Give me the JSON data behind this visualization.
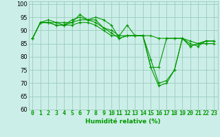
{
  "title": "",
  "xlabel": "Humidité relative (%)",
  "ylabel": "",
  "bg_color": "#cceee8",
  "grid_color": "#99ccbb",
  "line_color": "#009900",
  "series": [
    [
      87,
      93,
      93,
      93,
      93,
      93,
      96,
      94,
      95,
      94,
      92,
      87,
      88,
      88,
      88,
      88,
      87,
      87,
      87,
      87,
      86,
      85,
      86,
      86
    ],
    [
      87,
      93,
      94,
      93,
      92,
      94,
      95,
      94,
      94,
      91,
      89,
      87,
      88,
      88,
      88,
      76,
      76,
      87,
      87,
      87,
      84,
      85,
      86,
      86
    ],
    [
      87,
      93,
      93,
      92,
      92,
      93,
      94,
      94,
      93,
      91,
      90,
      88,
      92,
      88,
      88,
      79,
      70,
      71,
      75,
      87,
      85,
      84,
      86,
      86
    ],
    [
      87,
      93,
      93,
      92,
      92,
      92,
      93,
      93,
      92,
      90,
      88,
      88,
      88,
      88,
      88,
      76,
      69,
      70,
      75,
      87,
      84,
      85,
      85,
      85
    ]
  ],
  "xlim": [
    -0.5,
    23.5
  ],
  "ylim": [
    60,
    101
  ],
  "yticks": [
    60,
    65,
    70,
    75,
    80,
    85,
    90,
    95,
    100
  ],
  "xticks": [
    0,
    1,
    2,
    3,
    4,
    5,
    6,
    7,
    8,
    9,
    10,
    11,
    12,
    13,
    14,
    15,
    16,
    17,
    18,
    19,
    20,
    21,
    22,
    23
  ],
  "xlabel_fontsize": 6.5,
  "tick_fontsize": 6.0,
  "figsize": [
    3.2,
    2.0
  ],
  "dpi": 100
}
